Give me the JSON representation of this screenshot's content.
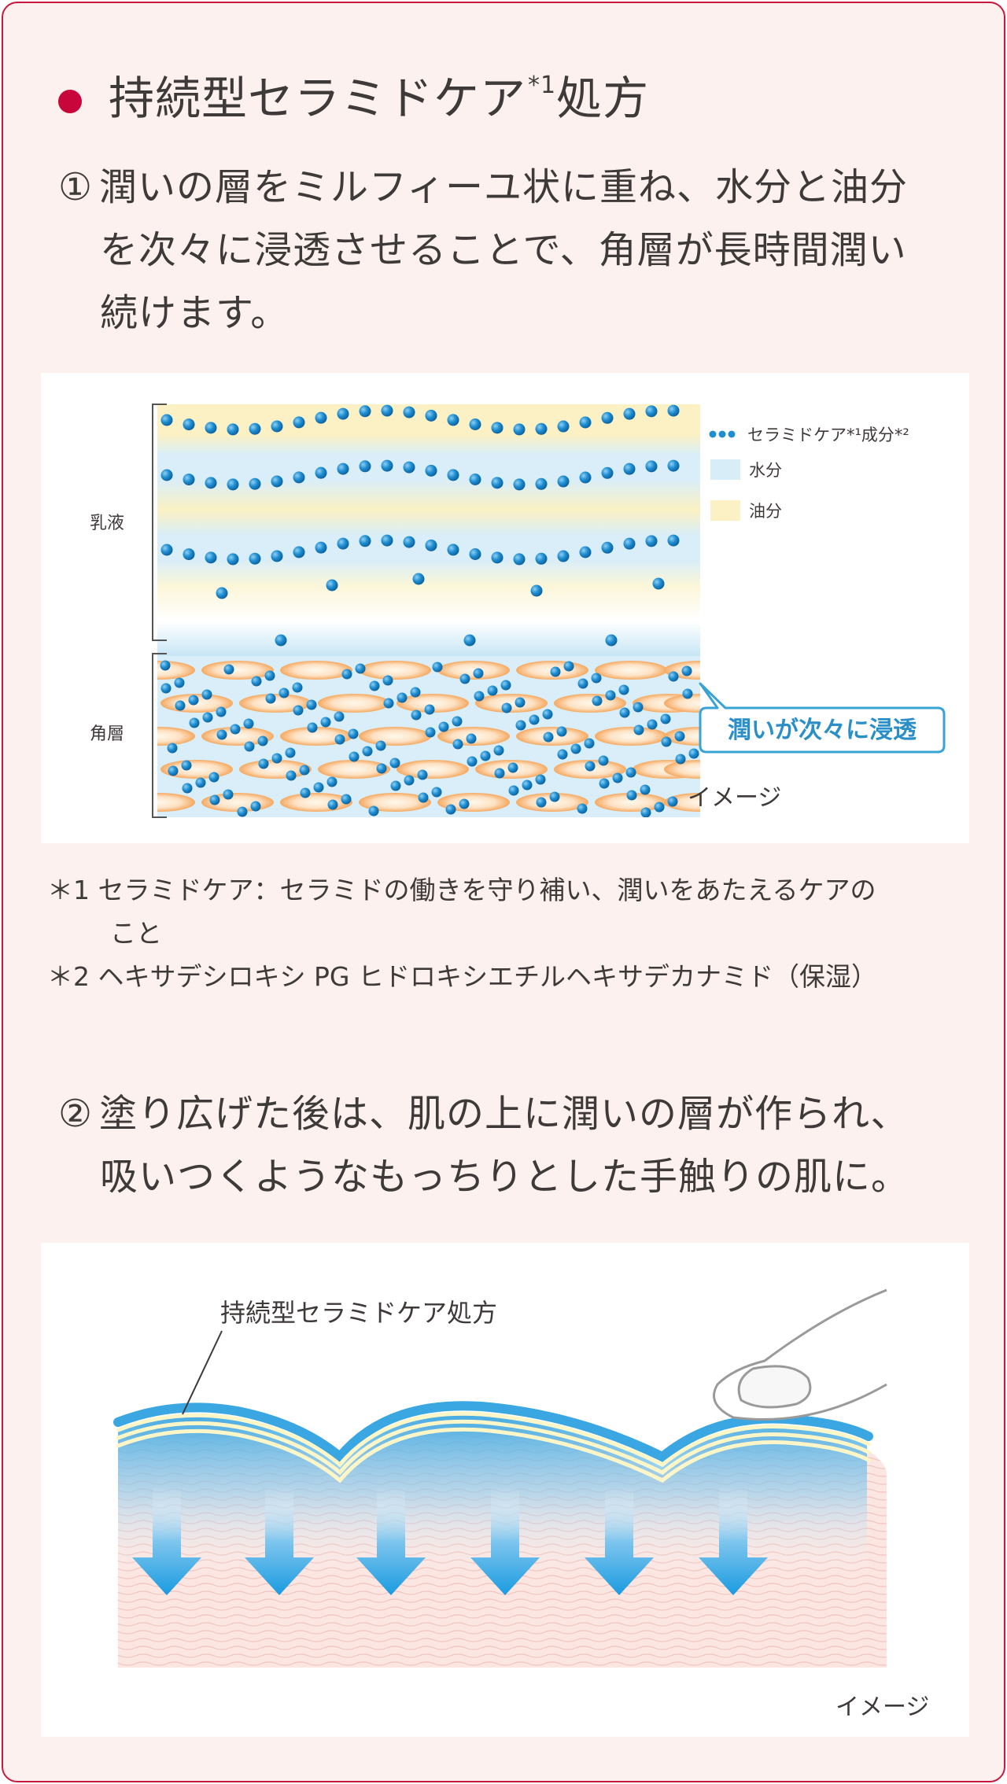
{
  "heading": {
    "title": "持続型セラミドケア",
    "title_sup": "*1",
    "title_suffix": "処方"
  },
  "point1": {
    "number": "①",
    "line1": "潤いの層をミルフィーユ状に重ね、水分と油分",
    "line2": "を次々に浸透させることで、角層が長時間潤い",
    "line3": "続けます。"
  },
  "diagram1": {
    "left_labels": {
      "emulsion": "乳液",
      "stratum": "角層"
    },
    "legend": [
      {
        "label": "セラミドケア*¹成分*²",
        "kind": "dots",
        "color": "#1f8ed1"
      },
      {
        "label": "水分",
        "kind": "swatch",
        "color": "#d7eef8"
      },
      {
        "label": "油分",
        "kind": "swatch",
        "color": "#fbf1c4"
      }
    ],
    "bubble_text": "潤いが次々に浸透",
    "caption": "イメージ"
  },
  "notes": [
    {
      "marker": "＊1",
      "text": "セラミドケア：セラミドの働きを守り補い、潤いをあたえるケアの",
      "cont": "こと"
    },
    {
      "marker": "＊2",
      "text": "ヘキサデシロキシ PG ヒドロキシエチルヘキサデカナミド（保湿）",
      "cont": ""
    }
  ],
  "point2": {
    "number": "②",
    "line1": "塗り広げた後は、肌の上に潤いの層が作られ、",
    "line2": "吸いつくようなもっちりとした手触りの肌に。"
  },
  "diagram2": {
    "label": "持続型セラミドケア処方",
    "caption": "イメージ"
  },
  "colors": {
    "accent": "#c9063b",
    "border": "#c8183d",
    "background": "#fcf1ee",
    "text": "#3e3a39",
    "blue": "#1f8ed1",
    "bubble": "#3aa3d6"
  }
}
